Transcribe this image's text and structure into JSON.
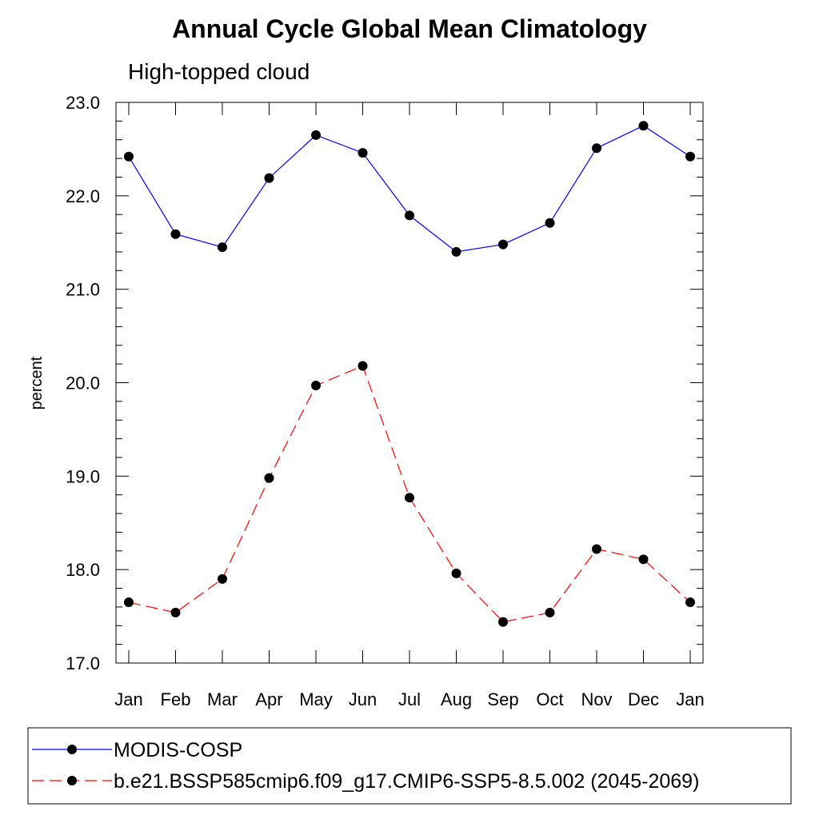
{
  "chart_data": {
    "type": "line",
    "title": "Annual Cycle Global Mean Climatology",
    "subtitle": "High-topped cloud",
    "ylabel": "percent",
    "xlabel": "",
    "categories": [
      "Jan",
      "Feb",
      "Mar",
      "Apr",
      "May",
      "Jun",
      "Jul",
      "Aug",
      "Sep",
      "Oct",
      "Nov",
      "Dec",
      "Jan"
    ],
    "ylim": [
      17.0,
      23.0
    ],
    "yticks": [
      "17.0",
      "18.0",
      "19.0",
      "20.0",
      "21.0",
      "22.0",
      "23.0"
    ],
    "grid": false,
    "legend_position": "bottom",
    "series": [
      {
        "name": "MODIS-COSP",
        "color": "#0000ff",
        "dash": "solid",
        "marker": "filled-circle",
        "values": [
          22.42,
          21.59,
          21.45,
          22.19,
          22.65,
          22.46,
          21.79,
          21.4,
          21.48,
          21.71,
          22.51,
          22.75,
          22.42
        ]
      },
      {
        "name": "b.e21.BSSP585cmip6.f09_g17.CMIP6-SSP5-8.5.002 (2045-2069)",
        "color": "#ff0000",
        "dash": "dashed",
        "marker": "filled-circle",
        "values": [
          17.65,
          17.54,
          17.9,
          18.98,
          19.97,
          20.18,
          18.77,
          17.96,
          17.44,
          17.54,
          18.22,
          18.11,
          17.65
        ]
      }
    ]
  }
}
